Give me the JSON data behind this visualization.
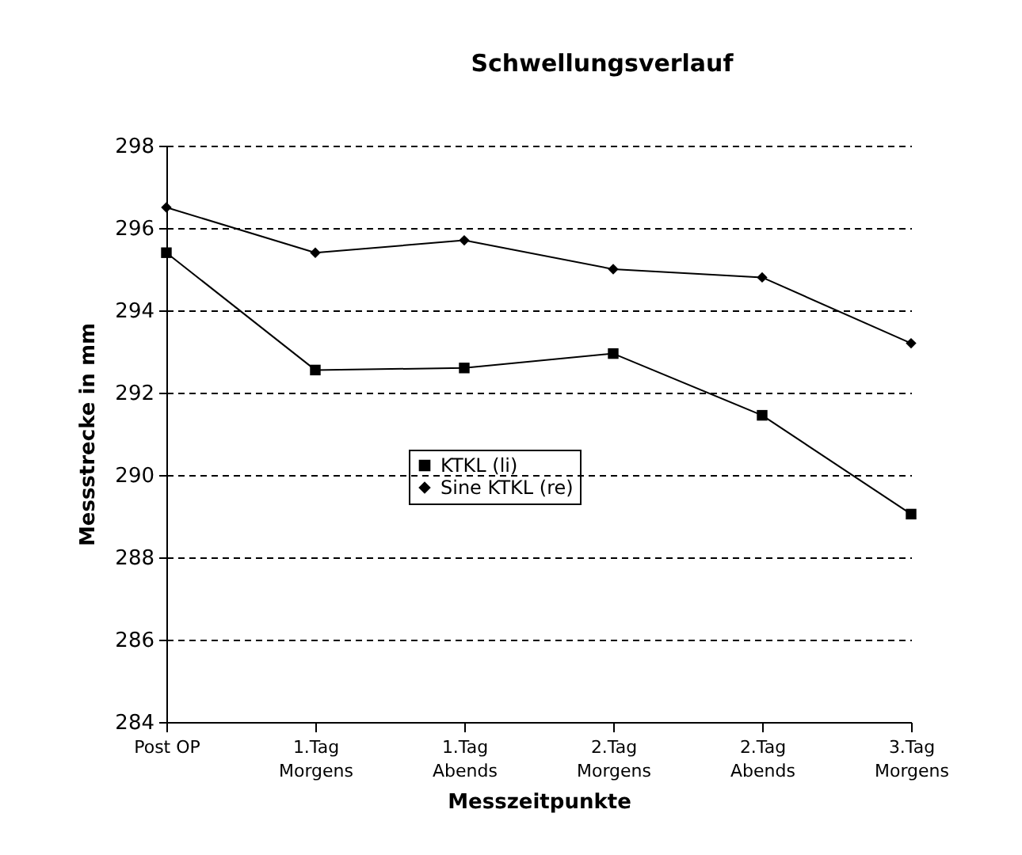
{
  "chart_data": {
    "type": "line",
    "title": "Schwellungsverlauf",
    "xlabel": "Messzeitpunkte",
    "ylabel": "Messstrecke in mm",
    "categories": [
      "Post OP",
      "1.Tag\nMorgens",
      "1.Tag\nAbends",
      "2.Tag\nMorgens",
      "2.Tag\nAbends",
      "3.Tag\nMorgens"
    ],
    "series": [
      {
        "name": "KTKL (li)",
        "color": "#000000",
        "marker": "square",
        "values": [
          295.4,
          292.55,
          292.6,
          292.95,
          291.45,
          289.05
        ]
      },
      {
        "name": "Sine KTKL (re)",
        "color": "#000000",
        "marker": "diamond",
        "values": [
          296.5,
          295.4,
          295.7,
          295.0,
          294.8,
          293.2
        ]
      }
    ],
    "ylim": [
      284,
      298
    ],
    "yticks": [
      284,
      286,
      288,
      290,
      292,
      294,
      296,
      298
    ],
    "grid": "y",
    "legend": "center",
    "line_style": "solid"
  }
}
